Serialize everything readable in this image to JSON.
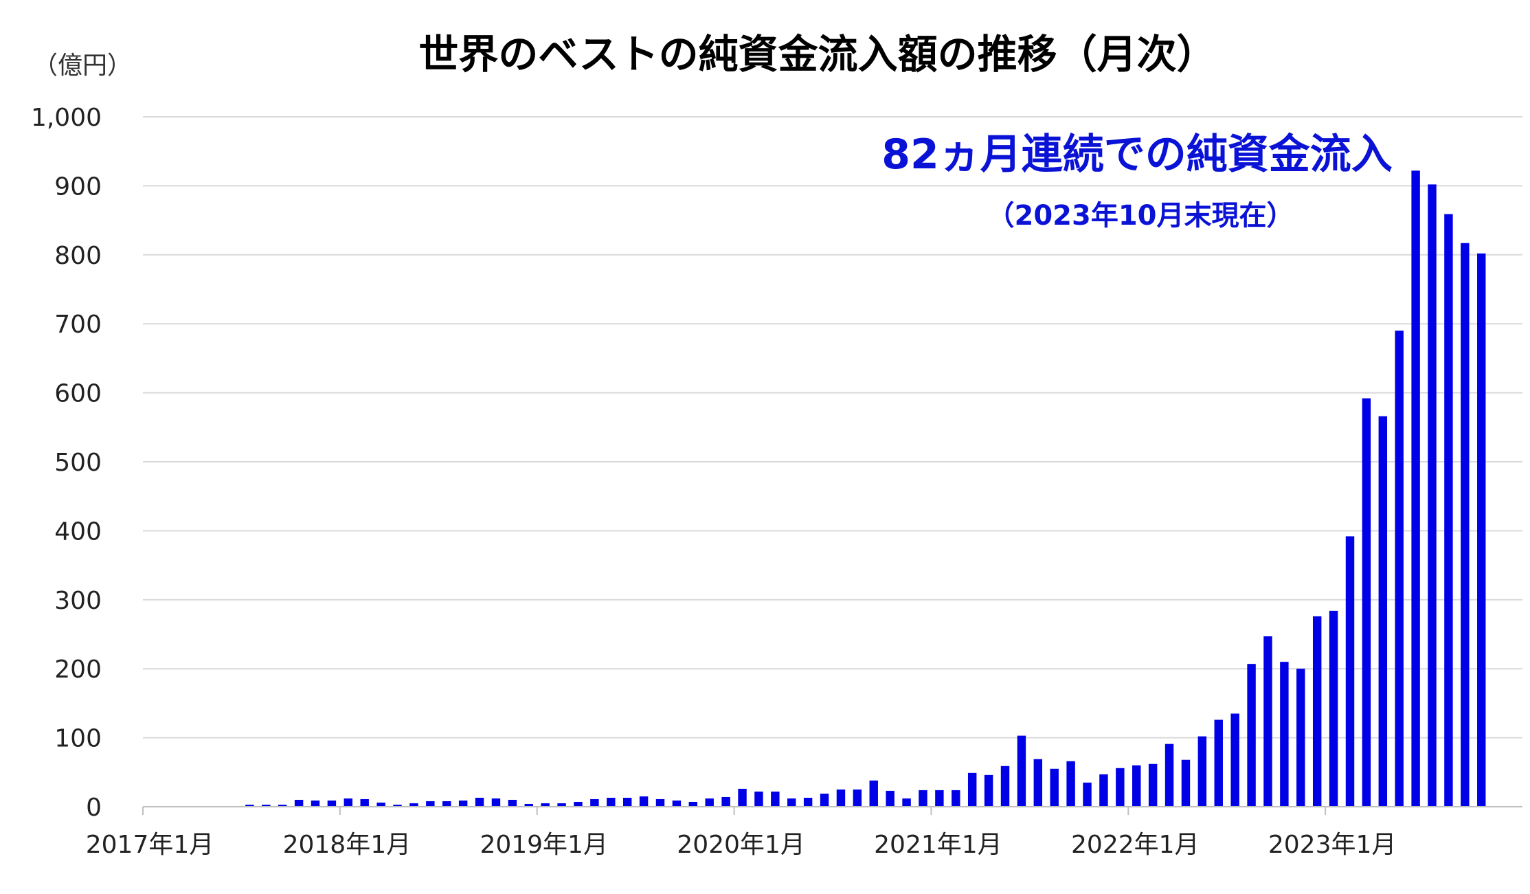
{
  "chart_data": {
    "type": "bar",
    "title": "世界のベストの純資金流入額の推移（月次）",
    "unit_label": "（億円）",
    "annotation": {
      "main": "82ヵ月連続での純資金流入",
      "sub": "（2023年10月末現在）"
    },
    "ylim": [
      0,
      1000
    ],
    "yticks": [
      "0",
      "100",
      "200",
      "300",
      "400",
      "500",
      "600",
      "700",
      "800",
      "900",
      "1,000"
    ],
    "ytick_values": [
      0,
      100,
      200,
      300,
      400,
      500,
      600,
      700,
      800,
      900,
      1000
    ],
    "xtick_labels": [
      "2017年1月",
      "2018年1月",
      "2019年1月",
      "2020年1月",
      "2021年1月",
      "2022年1月",
      "2023年1月"
    ],
    "xtick_indices": [
      0,
      12,
      24,
      36,
      48,
      60,
      72
    ],
    "grid": true,
    "legend": "none",
    "categories": [
      "2017-01",
      "2017-02",
      "2017-03",
      "2017-04",
      "2017-05",
      "2017-06",
      "2017-07",
      "2017-08",
      "2017-09",
      "2017-10",
      "2017-11",
      "2017-12",
      "2018-01",
      "2018-02",
      "2018-03",
      "2018-04",
      "2018-05",
      "2018-06",
      "2018-07",
      "2018-08",
      "2018-09",
      "2018-10",
      "2018-11",
      "2018-12",
      "2019-01",
      "2019-02",
      "2019-03",
      "2019-04",
      "2019-05",
      "2019-06",
      "2019-07",
      "2019-08",
      "2019-09",
      "2019-10",
      "2019-11",
      "2019-12",
      "2020-01",
      "2020-02",
      "2020-03",
      "2020-04",
      "2020-05",
      "2020-06",
      "2020-07",
      "2020-08",
      "2020-09",
      "2020-10",
      "2020-11",
      "2020-12",
      "2021-01",
      "2021-02",
      "2021-03",
      "2021-04",
      "2021-05",
      "2021-06",
      "2021-07",
      "2021-08",
      "2021-09",
      "2021-10",
      "2021-11",
      "2021-12",
      "2022-01",
      "2022-02",
      "2022-03",
      "2022-04",
      "2022-05",
      "2022-06",
      "2022-07",
      "2022-08",
      "2022-09",
      "2022-10",
      "2022-11",
      "2022-12",
      "2023-01",
      "2023-02",
      "2023-03",
      "2023-04",
      "2023-05",
      "2023-06",
      "2023-07",
      "2023-08",
      "2023-09",
      "2023-10",
      "2023-11",
      "2023-12"
    ],
    "values": [
      0,
      0,
      0,
      0,
      0,
      0,
      3,
      3,
      3,
      10,
      9,
      9,
      12,
      11,
      6,
      3,
      5,
      8,
      8,
      9,
      13,
      12,
      10,
      4,
      5,
      5,
      7,
      11,
      13,
      13,
      15,
      11,
      9,
      7,
      12,
      14,
      26,
      22,
      22,
      12,
      13,
      19,
      25,
      25,
      38,
      23,
      12,
      24,
      24,
      24,
      49,
      46,
      59,
      103,
      69,
      55,
      66,
      35,
      47,
      56,
      60,
      62,
      91,
      68,
      102,
      126,
      135,
      207,
      247,
      210,
      200,
      276,
      284,
      392,
      592,
      566,
      690,
      922,
      902,
      859,
      817,
      802,
      0,
      0
    ],
    "colors": {
      "bar": "#0000e6",
      "annotation": "#0a12d6",
      "grid": "#d9d9d9",
      "axis": "#bfbfbf"
    }
  }
}
